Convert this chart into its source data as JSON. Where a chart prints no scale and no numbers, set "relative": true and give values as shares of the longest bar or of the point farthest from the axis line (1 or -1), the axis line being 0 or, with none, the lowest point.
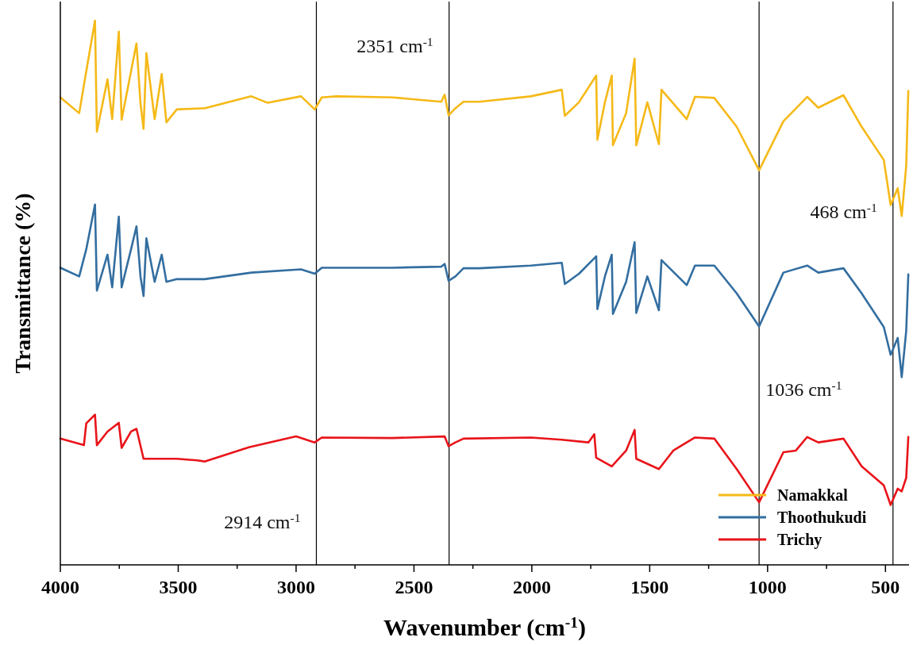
{
  "chart_data": {
    "type": "line",
    "xlabel": "Wavenumber (cm$^{-1}$)",
    "ylabel": "Transmittance (%)",
    "relative": true,
    "tick_labels": "x",
    "legend": "bottom right",
    "grid": false,
    "marker": "none",
    "line_style": "solid",
    "xlim": [
      4000,
      400
    ],
    "xticks": [
      4000,
      {
        "value": 3750,
        "label": null
      },
      3500,
      {
        "value": 3250,
        "label": null
      },
      3000,
      {
        "value": 2750,
        "label": null
      },
      2500,
      {
        "value": 2250,
        "label": null
      },
      2000,
      {
        "value": 1750,
        "label": null
      },
      1500,
      {
        "value": 1250,
        "label": null
      },
      1000,
      {
        "value": 750,
        "label": null
      },
      500
    ],
    "ref_lines": [
      {
        "axis": "x",
        "value": 2914,
        "label": "2914 cm$^{-1}$",
        "color": "#000000"
      },
      {
        "axis": "x",
        "value": 2351,
        "label": "2351 cm$^{-1}$",
        "color": "#000000"
      },
      {
        "axis": "x",
        "value": 1036,
        "label": "1036 cm$^{-1}$",
        "color": "#000000"
      },
      {
        "axis": "x",
        "value": 468,
        "label": "468 cm$^{-1}$",
        "color": "#000000"
      }
    ],
    "series": [
      {
        "name": "Namakkal",
        "color": "#f5b918",
        "x": [
          4000,
          3920,
          3890,
          3853,
          3845,
          3800,
          3780,
          3752,
          3740,
          3700,
          3677,
          3660,
          3647,
          3635,
          3600,
          3570,
          3550,
          3506,
          3388,
          3190,
          3120,
          2979,
          2921,
          2891,
          2827,
          2592,
          2384,
          2370,
          2353,
          2324,
          2290,
          2222,
          2004,
          1873,
          1860,
          1800,
          1727,
          1722,
          1690,
          1661,
          1656,
          1600,
          1564,
          1557,
          1510,
          1461,
          1450,
          1343,
          1308,
          1226,
          1131,
          1036,
          933,
          832,
          785,
          678,
          601,
          507,
          478,
          448,
          431,
          412,
          403
        ],
        "values": [
          0.859,
          0.83,
          0.907,
          1.0,
          0.796,
          0.892,
          0.819,
          0.98,
          0.818,
          0.907,
          0.958,
          0.848,
          0.801,
          0.94,
          0.819,
          0.902,
          0.813,
          0.837,
          0.839,
          0.861,
          0.849,
          0.861,
          0.837,
          0.859,
          0.861,
          0.859,
          0.851,
          0.864,
          0.826,
          0.839,
          0.851,
          0.851,
          0.861,
          0.873,
          0.825,
          0.85,
          0.899,
          0.781,
          0.85,
          0.899,
          0.771,
          0.83,
          0.93,
          0.771,
          0.85,
          0.773,
          0.873,
          0.819,
          0.86,
          0.858,
          0.805,
          0.725,
          0.815,
          0.86,
          0.84,
          0.863,
          0.805,
          0.744,
          0.661,
          0.692,
          0.641,
          0.733,
          0.871
        ]
      },
      {
        "name": "Thoothukudi",
        "color": "#336ea0",
        "x": [
          4000,
          3920,
          3890,
          3853,
          3845,
          3800,
          3780,
          3752,
          3740,
          3700,
          3677,
          3660,
          3647,
          3635,
          3600,
          3570,
          3550,
          3506,
          3388,
          3190,
          2979,
          2921,
          2891,
          2592,
          2384,
          2370,
          2353,
          2324,
          2290,
          2222,
          2004,
          1873,
          1860,
          1800,
          1727,
          1722,
          1690,
          1661,
          1656,
          1600,
          1564,
          1557,
          1510,
          1461,
          1450,
          1343,
          1308,
          1226,
          1131,
          1036,
          933,
          832,
          785,
          678,
          601,
          507,
          478,
          448,
          431,
          412,
          403
        ],
        "values": [
          0.546,
          0.53,
          0.58,
          0.662,
          0.504,
          0.57,
          0.51,
          0.64,
          0.51,
          0.58,
          0.622,
          0.53,
          0.494,
          0.6,
          0.52,
          0.57,
          0.52,
          0.525,
          0.525,
          0.537,
          0.543,
          0.535,
          0.546,
          0.546,
          0.548,
          0.553,
          0.522,
          0.53,
          0.545,
          0.545,
          0.55,
          0.555,
          0.516,
          0.535,
          0.567,
          0.47,
          0.53,
          0.57,
          0.461,
          0.52,
          0.593,
          0.463,
          0.53,
          0.468,
          0.56,
          0.514,
          0.55,
          0.55,
          0.499,
          0.438,
          0.537,
          0.55,
          0.537,
          0.545,
          0.499,
          0.437,
          0.386,
          0.417,
          0.345,
          0.43,
          0.534
        ]
      },
      {
        "name": "Trichy",
        "color": "#e8141a",
        "x": [
          4000,
          3900,
          3890,
          3853,
          3845,
          3800,
          3752,
          3740,
          3700,
          3677,
          3647,
          3600,
          3506,
          3420,
          3388,
          3200,
          3000,
          2921,
          2891,
          2592,
          2370,
          2353,
          2324,
          2290,
          2004,
          1873,
          1760,
          1735,
          1727,
          1661,
          1600,
          1564,
          1557,
          1461,
          1400,
          1343,
          1308,
          1226,
          1131,
          1036,
          933,
          880,
          832,
          785,
          678,
          601,
          507,
          478,
          448,
          431,
          412,
          403
        ],
        "values": [
          0.232,
          0.22,
          0.26,
          0.276,
          0.22,
          0.245,
          0.261,
          0.215,
          0.245,
          0.25,
          0.195,
          0.195,
          0.195,
          0.192,
          0.19,
          0.216,
          0.236,
          0.225,
          0.234,
          0.233,
          0.236,
          0.218,
          0.225,
          0.232,
          0.234,
          0.23,
          0.225,
          0.24,
          0.197,
          0.181,
          0.21,
          0.248,
          0.195,
          0.176,
          0.21,
          0.225,
          0.234,
          0.232,
          0.176,
          0.115,
          0.207,
          0.21,
          0.235,
          0.225,
          0.232,
          0.181,
          0.146,
          0.11,
          0.14,
          0.135,
          0.16,
          0.235
        ]
      }
    ]
  }
}
